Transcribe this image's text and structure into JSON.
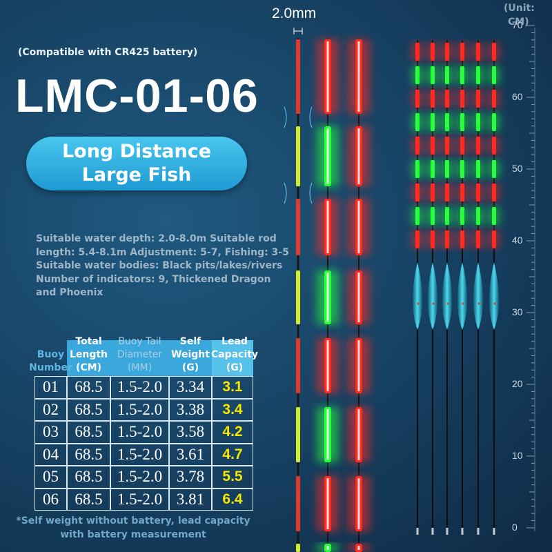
{
  "dimension_label": "2.0mm",
  "unit_label": [
    "(Unit:",
    "CM)"
  ],
  "ruler_ticks": [
    0,
    10,
    20,
    30,
    40,
    50,
    60,
    70
  ],
  "subtitle": "(Compatible with CR425 battery)",
  "title": "LMC-01-06",
  "badge": [
    "Long Distance",
    "Large Fish"
  ],
  "description": [
    "Suitable water depth: 2.0-8.0m Suitable rod",
    "length: 5.4-8.1m Adjustment: 5-7, Fishing: 3-5",
    "Suitable water bodies: Black pits/lakes/rivers",
    "Number of indicators: 9, Thickened Dragon",
    "and Phoenix"
  ],
  "table": {
    "header": [
      "Buoy Number",
      "Total Length (CM)",
      "Buoy Tail Diameter (MM)",
      "Self Weight (G)",
      "Lead Capacity (G)"
    ],
    "rows": [
      [
        "01",
        "68.5",
        "1.5-2.0",
        "3.34",
        "3.1"
      ],
      [
        "02",
        "68.5",
        "1.5-2.0",
        "3.38",
        "3.4"
      ],
      [
        "03",
        "68.5",
        "1.5-2.0",
        "3.58",
        "4.2"
      ],
      [
        "04",
        "68.5",
        "1.5-2.0",
        "3.61",
        "4.7"
      ],
      [
        "05",
        "68.5",
        "1.5-2.0",
        "3.78",
        "5.5"
      ],
      [
        "06",
        "68.5",
        "1.5-2.0",
        "3.81",
        "6.4"
      ]
    ]
  },
  "footnote": [
    "*Self weight without battery, lead capacity",
    "with battery measurement"
  ]
}
